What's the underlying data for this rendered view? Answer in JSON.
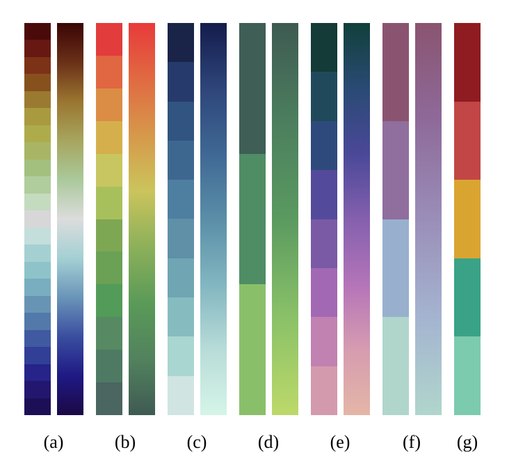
{
  "figure": {
    "panels": [
      {
        "label": "(a)",
        "discrete": [
          "#4a0a0a",
          "#671812",
          "#7c3216",
          "#87511e",
          "#9a7a30",
          "#a99a3f",
          "#aeac4a",
          "#a9b564",
          "#a3c07f",
          "#b0cd9d",
          "#c5dbc0",
          "#d7d7d7",
          "#c4dedb",
          "#a5d0d1",
          "#8ec3ca",
          "#78aec0",
          "#6894b3",
          "#5279a9",
          "#3f5aa0",
          "#323f96",
          "#262488",
          "#23166f",
          "#1c0f55"
        ],
        "gradient": [
          "#3a0505",
          "#6a3018",
          "#9a7530",
          "#a7a55e",
          "#aac99b",
          "#dcdcdc",
          "#a4d0d4",
          "#6a94b8",
          "#3a4ea0",
          "#1f1984",
          "#1c0845"
        ]
      },
      {
        "label": "(b)",
        "discrete": [
          "#e23c3c",
          "#e16642",
          "#dc8d45",
          "#d5af4b",
          "#c8c660",
          "#a8c05c",
          "#7ea754",
          "#6aa155",
          "#529b58",
          "#578a62",
          "#4e7a64",
          "#4b6560"
        ],
        "gradient": [
          "#e83a3a",
          "#e06a42",
          "#d6984a",
          "#cbc45c",
          "#8cb05a",
          "#5a9a58",
          "#52825e",
          "#3f5a52"
        ]
      },
      {
        "label": "(c)",
        "discrete": [
          "#1a2348",
          "#263b6c",
          "#315480",
          "#3e6790",
          "#4e7ea0",
          "#5f90a8",
          "#70a5b3",
          "#86bcc0",
          "#aad6d1",
          "#d0e4e2"
        ],
        "gradient": [
          "#141c4c",
          "#2e457a",
          "#3f6894",
          "#5a8ea8",
          "#82b6c0",
          "#b8dcd8",
          "#d5f5e8"
        ]
      },
      {
        "label": "(d)",
        "discrete": [
          "#3f5e55",
          "#4f8d65",
          "#8abf6a"
        ],
        "gradient": [
          "#3e5a52",
          "#4c7e5e",
          "#5a9a60",
          "#8ac168",
          "#bdd96a"
        ]
      },
      {
        "label": "(e)",
        "discrete": [
          "#143b38",
          "#204a5c",
          "#2e4a7c",
          "#544a9c",
          "#7a5aa4",
          "#a368b4",
          "#c182b2",
          "#d39aae"
        ],
        "gradient": [
          "#10403a",
          "#2a4a74",
          "#4a4898",
          "#8460ae",
          "#b474b8",
          "#d69cb0",
          "#e4b6a6"
        ]
      },
      {
        "label": "(f)",
        "discrete": [
          "#8a5470",
          "#906e9e",
          "#98b0ce",
          "#b0d6cc"
        ],
        "gradient": [
          "#8a5470",
          "#8e6a9a",
          "#9a8eb8",
          "#a4b4d0",
          "#b0d6cc"
        ]
      },
      {
        "label": "(g)",
        "discrete": [
          "#8f1c20",
          "#c24646",
          "#daa431",
          "#3aa387",
          "#7ccbae"
        ]
      }
    ]
  }
}
